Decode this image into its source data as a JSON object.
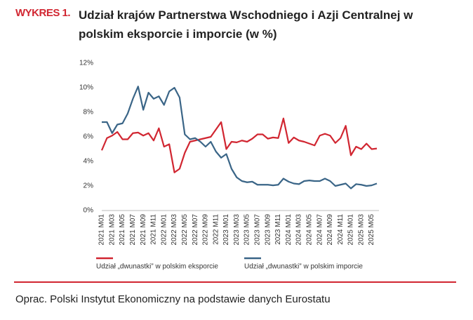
{
  "chart_data": {
    "type": "line",
    "label": "WYKRES 1.",
    "title": "Udział krajów Partnerstwa Wschodniego i Azji Centralnej w polskim eksporcie i imporcie (w %)",
    "source": "Oprac. Polski Instytut Ekonomiczny na podstawie danych Eurostatu",
    "categories": [
      "2021 M01",
      null,
      "2021 M03",
      null,
      "2021 M05",
      null,
      "2021 M07",
      null,
      "2021 M09",
      null,
      "2021 M11",
      null,
      "2022 M01",
      null,
      "2022 M03",
      null,
      "2022 M05",
      null,
      "2022 M07",
      null,
      "2022 M09",
      null,
      "2022 M11",
      null,
      "2023 M01",
      null,
      "2023 M03",
      null,
      "2023 M05",
      null,
      "2023 M07",
      null,
      "2023 M09",
      null,
      "2023 M11",
      null,
      "2024 M01",
      null,
      "2024 M03",
      null,
      "2024 M05",
      null,
      "2024 M07",
      null,
      "2024 M09",
      null,
      "2024 M11",
      null,
      "2025 M01",
      null,
      "2025 M03",
      null,
      "2025 M05",
      null
    ],
    "series": [
      {
        "name": "Udział „dwunastki” w polskim eksporcie",
        "color": "#d12631",
        "values": [
          4.9,
          5.9,
          6.1,
          6.4,
          5.8,
          5.8,
          6.3,
          6.35,
          6.1,
          6.3,
          5.7,
          6.7,
          5.2,
          5.4,
          3.1,
          3.4,
          4.7,
          5.6,
          5.7,
          5.8,
          5.9,
          6.0,
          6.6,
          7.2,
          5.0,
          5.6,
          5.55,
          5.7,
          5.6,
          5.85,
          6.2,
          6.2,
          5.85,
          5.95,
          5.9,
          7.5,
          5.5,
          5.95,
          5.7,
          5.6,
          5.45,
          5.3,
          6.1,
          6.25,
          6.1,
          5.5,
          5.9,
          6.9,
          4.5,
          5.2,
          5.0,
          5.45,
          5.0,
          5.05
        ]
      },
      {
        "name": "Udział „dwunastki” w polskim imporcie",
        "color": "#3a6587",
        "values": [
          7.2,
          7.2,
          6.3,
          7.0,
          7.1,
          7.9,
          9.1,
          10.1,
          8.2,
          9.6,
          9.1,
          9.3,
          8.6,
          9.7,
          10.0,
          9.2,
          6.2,
          5.8,
          5.9,
          5.6,
          5.2,
          5.6,
          4.8,
          4.3,
          4.6,
          3.4,
          2.7,
          2.4,
          2.3,
          2.35,
          2.1,
          2.1,
          2.1,
          2.05,
          2.1,
          2.6,
          2.35,
          2.2,
          2.15,
          2.4,
          2.45,
          2.4,
          2.4,
          2.6,
          2.4,
          2.0,
          2.1,
          2.2,
          1.8,
          2.15,
          2.1,
          2.0,
          2.05,
          2.2
        ]
      }
    ],
    "ylim": [
      0,
      12
    ],
    "yticks": [
      {
        "value": 0,
        "label": "0%"
      },
      {
        "value": 2,
        "label": "2%"
      },
      {
        "value": 4,
        "label": "4%"
      },
      {
        "value": 6,
        "label": "6%"
      },
      {
        "value": 8,
        "label": "8%"
      },
      {
        "value": 10,
        "label": "10%"
      },
      {
        "value": 12,
        "label": "12%"
      }
    ],
    "grid": false
  }
}
